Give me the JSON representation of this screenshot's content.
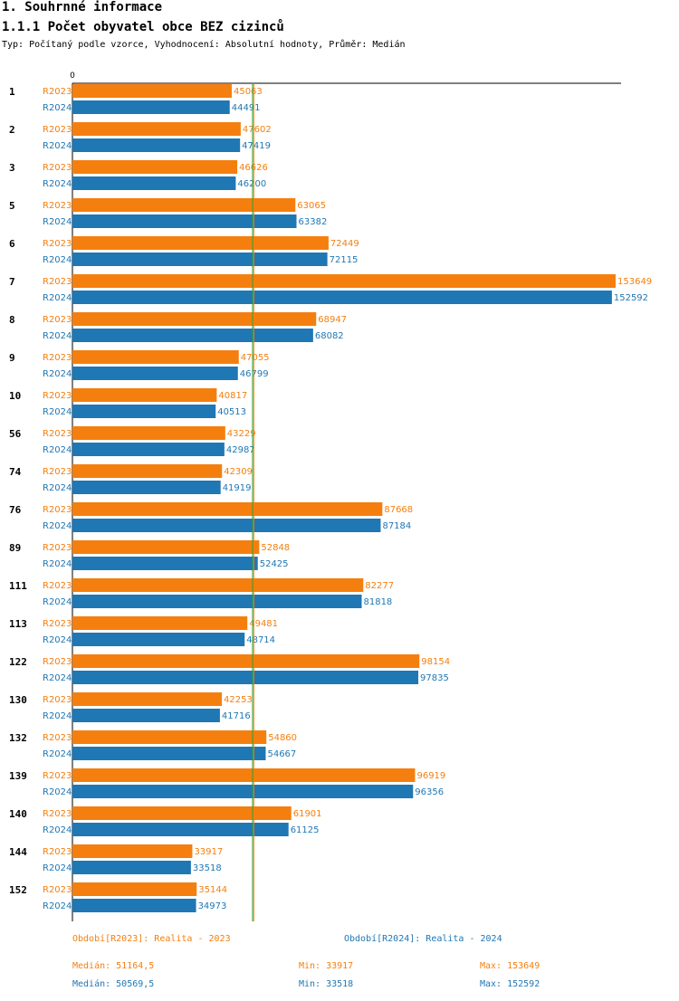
{
  "header": {
    "title": "1. Souhrnné informace",
    "subtitle": "1.1.1 Počet obyvatel obce BEZ cizinců",
    "type_line": "Typ: Počítaný podle vzorce, Vyhodnocení: Absolutní hodnoty, Průměr: Medián"
  },
  "colors": {
    "r2023": "#f57f0e",
    "r2024": "#1f77b4",
    "median2023": "#f57f0e",
    "median2024": "#2ca02c"
  },
  "chart_data": {
    "type": "bar",
    "orientation": "horizontal",
    "title": "1.1.1 Počet obyvatel obce BEZ cizinců",
    "x_axis_tick": "0",
    "xlim": [
      0,
      155000
    ],
    "categories": [
      "1",
      "2",
      "3",
      "5",
      "6",
      "7",
      "8",
      "9",
      "10",
      "56",
      "74",
      "76",
      "89",
      "111",
      "113",
      "122",
      "130",
      "132",
      "139",
      "140",
      "144",
      "152"
    ],
    "series": [
      {
        "name": "R2023",
        "values": [
          45063,
          47602,
          46626,
          63065,
          72449,
          153649,
          68947,
          47055,
          40817,
          43229,
          42309,
          87668,
          52848,
          82277,
          49481,
          98154,
          42253,
          54860,
          96919,
          61901,
          33917,
          35144
        ]
      },
      {
        "name": "R2024",
        "values": [
          44491,
          47419,
          46200,
          63382,
          72115,
          152592,
          68082,
          46799,
          40513,
          42987,
          41919,
          87184,
          52425,
          81818,
          48714,
          97835,
          41716,
          54667,
          96356,
          61125,
          33518,
          34973
        ]
      }
    ],
    "medians": [
      51164.5,
      50569.5
    ]
  },
  "legend": {
    "r2023_period": "Období[R2023]: Realita - 2023",
    "r2024_period": "Období[R2024]: Realita - 2024",
    "r2023_median": "Medián: 51164,5",
    "r2023_min": "Min: 33917",
    "r2023_max": "Max: 153649",
    "r2024_median": "Medián: 50569,5",
    "r2024_min": "Min: 33518",
    "r2024_max": "Max: 152592"
  }
}
